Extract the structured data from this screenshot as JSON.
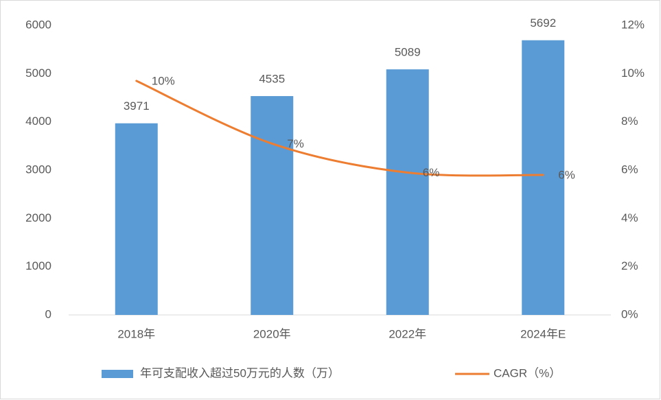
{
  "chart_data": {
    "type": "bar",
    "categories": [
      "2018年",
      "2020年",
      "2022年",
      "2024年E"
    ],
    "series": [
      {
        "name": "年可支配收入超过50万元的人数（万）",
        "type": "bar",
        "color": "#5b9bd5",
        "values": [
          3971,
          4535,
          5089,
          5692
        ]
      },
      {
        "name": "CAGR（%）",
        "type": "line",
        "axis": "y2",
        "color": "#ed7d31",
        "values": [
          9.7,
          7.1,
          5.9,
          5.8
        ],
        "value_labels": [
          "10%",
          "7%",
          "6%",
          "6%"
        ]
      }
    ],
    "ylim": [
      0,
      6000
    ],
    "yticks": [
      0,
      1000,
      2000,
      3000,
      4000,
      5000,
      6000
    ],
    "y2lim": [
      0,
      12
    ],
    "y2ticks": [
      {
        "value": 0,
        "label": "0%"
      },
      {
        "value": 2,
        "label": "2%"
      },
      {
        "value": 4,
        "label": "4%"
      },
      {
        "value": 6,
        "label": "6%"
      },
      {
        "value": 8,
        "label": "8%"
      },
      {
        "value": 10,
        "label": "10%"
      },
      {
        "value": 12,
        "label": "12%"
      }
    ],
    "grid": false,
    "legend": "bottom"
  }
}
